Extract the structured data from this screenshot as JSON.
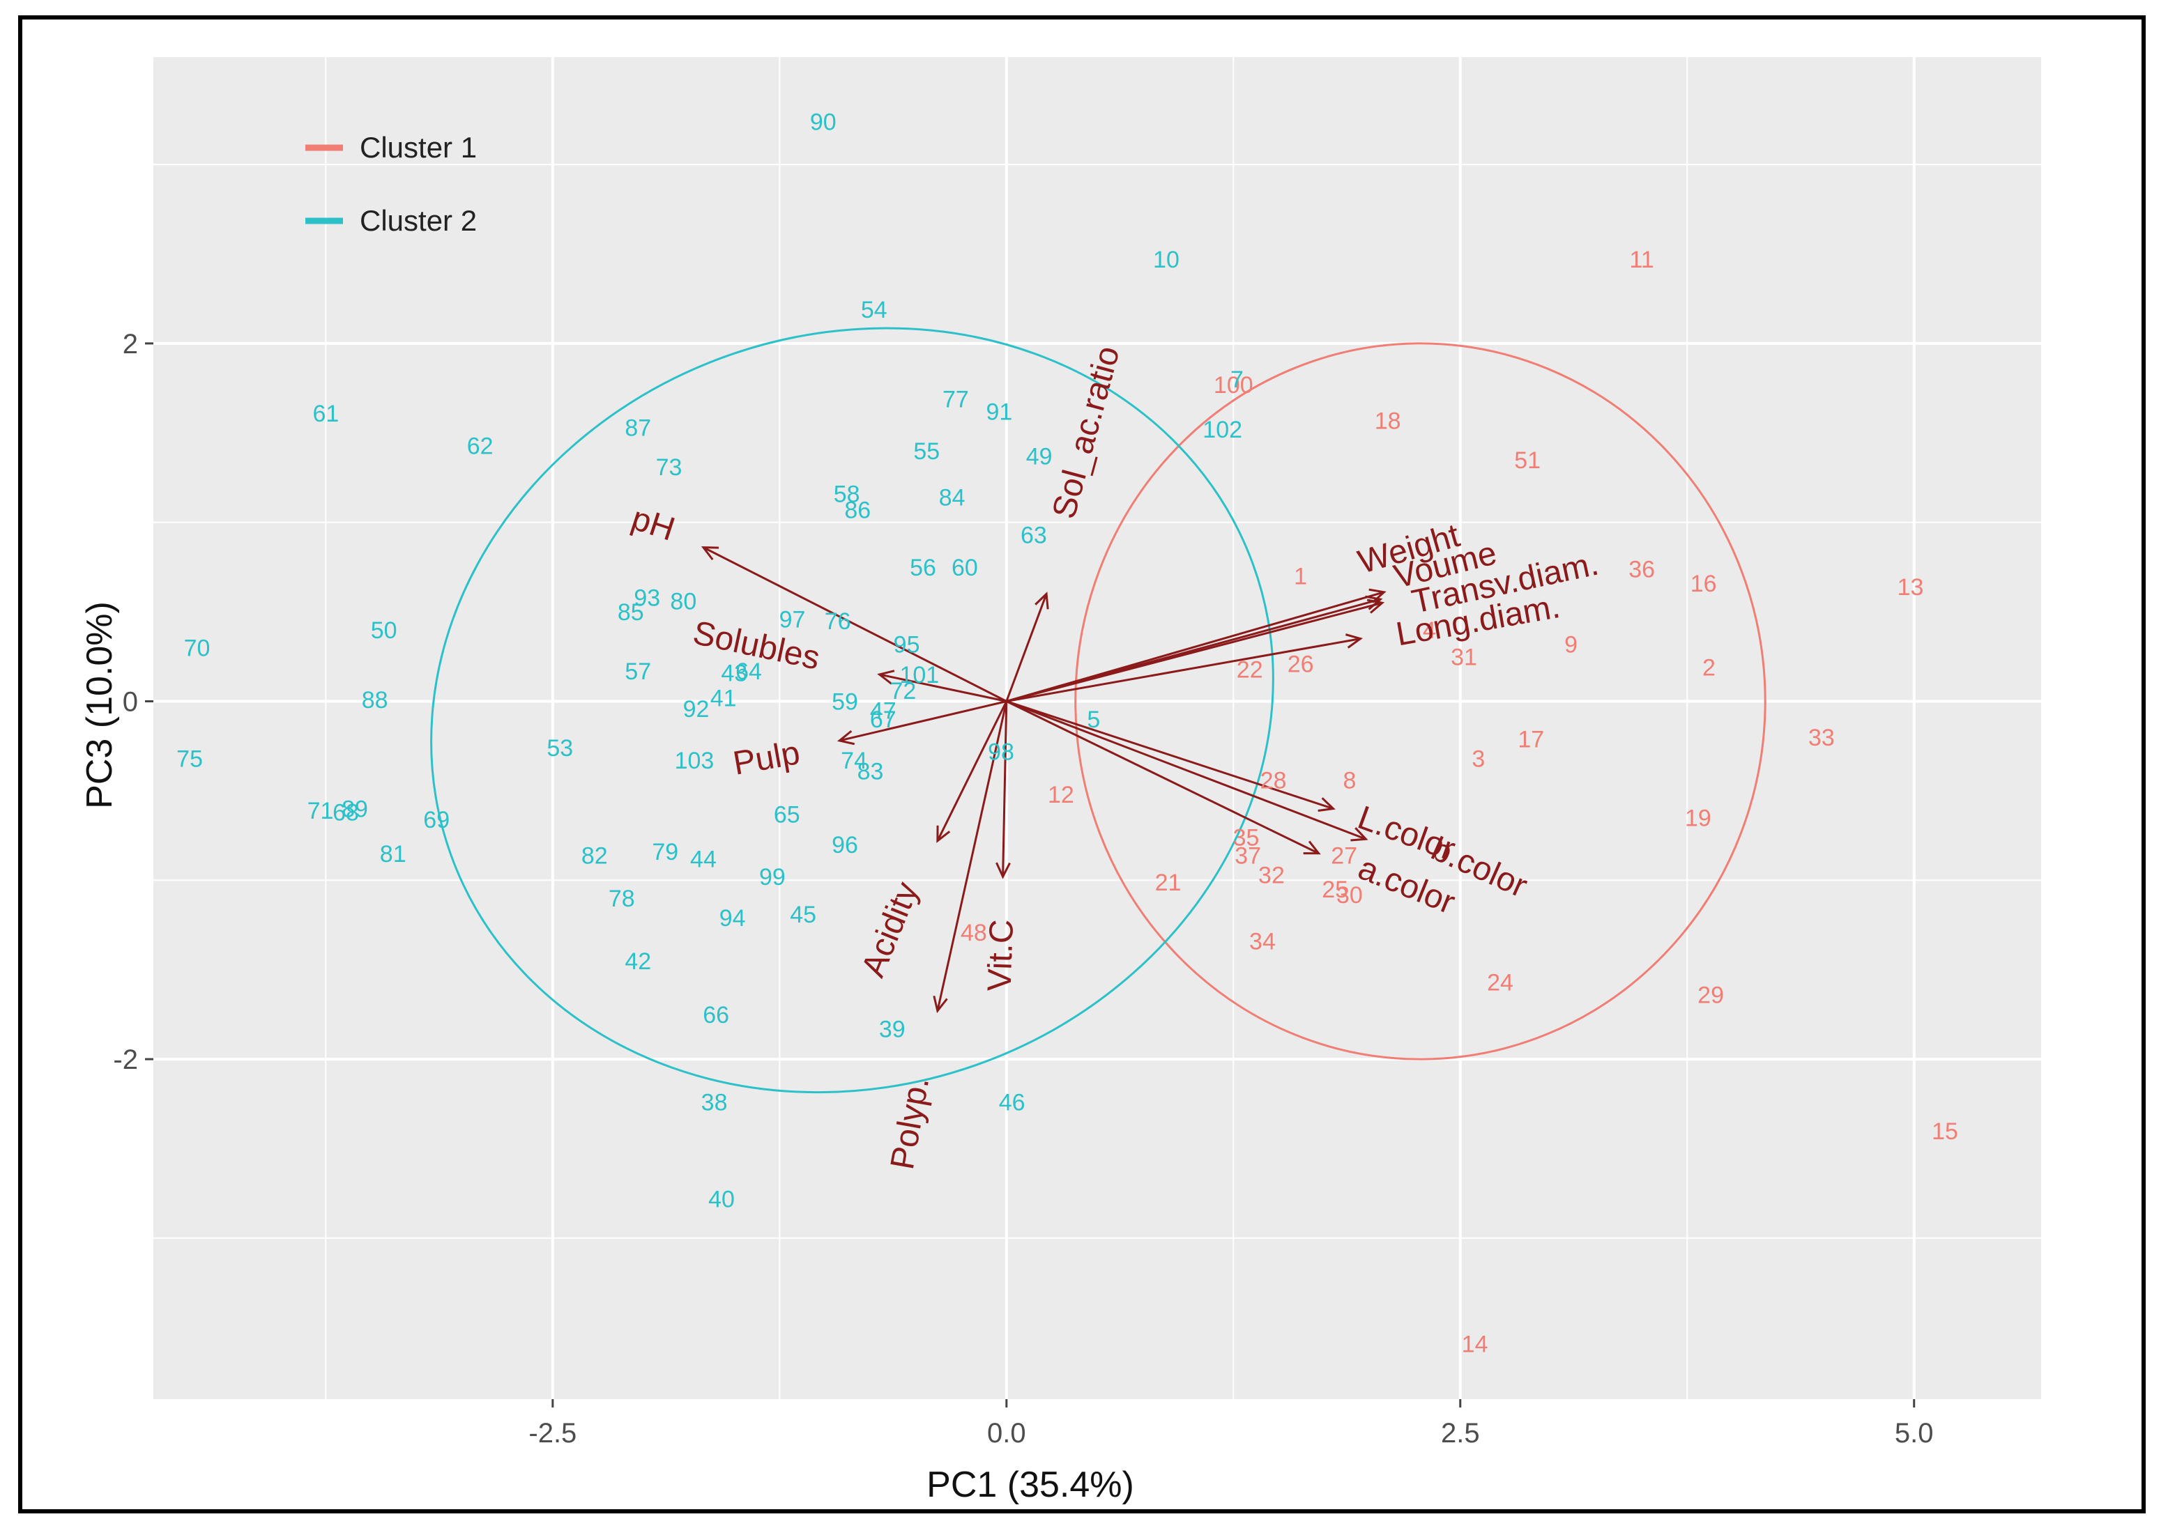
{
  "chart_data": {
    "type": "scatter",
    "title": "",
    "xlabel": "PC1 (35.4%)",
    "ylabel": "PC3 (10.0%)",
    "xlim": [
      -4.7,
      5.7
    ],
    "ylim": [
      -3.9,
      3.6
    ],
    "xticks": [
      -2.5,
      0.0,
      2.5,
      5.0
    ],
    "xtick_labels": [
      "-2.5",
      "0.0",
      "2.5",
      "5.0"
    ],
    "yticks": [
      -2,
      0,
      2
    ],
    "ytick_labels": [
      "-2",
      "0",
      "2"
    ],
    "grid": true,
    "legend_position": "top-left",
    "colors": {
      "cluster1": "#f07e74",
      "cluster2": "#2cc1c9",
      "arrow": "#8b1a1a",
      "panel": "#ebebeb",
      "grid": "#ffffff"
    },
    "series": [
      {
        "name": "Cluster 1",
        "color": "#f07e74",
        "ellipse": {
          "cx": 2.28,
          "cy": 0.0,
          "rx": 1.9,
          "ry": 2.0
        },
        "points": [
          {
            "label": "11",
            "x": 3.5,
            "y": 2.47
          },
          {
            "label": "100",
            "x": 1.25,
            "y": 1.77
          },
          {
            "label": "18",
            "x": 2.1,
            "y": 1.57
          },
          {
            "label": "51",
            "x": 2.87,
            "y": 1.35
          },
          {
            "label": "1",
            "x": 1.62,
            "y": 0.7
          },
          {
            "label": "36",
            "x": 3.5,
            "y": 0.74
          },
          {
            "label": "16",
            "x": 3.84,
            "y": 0.66
          },
          {
            "label": "13",
            "x": 4.98,
            "y": 0.64
          },
          {
            "label": "4",
            "x": 2.33,
            "y": 0.4
          },
          {
            "label": "31",
            "x": 2.52,
            "y": 0.25
          },
          {
            "label": "9",
            "x": 3.11,
            "y": 0.32
          },
          {
            "label": "2",
            "x": 3.87,
            "y": 0.19
          },
          {
            "label": "22",
            "x": 1.34,
            "y": 0.18
          },
          {
            "label": "26",
            "x": 1.62,
            "y": 0.21
          },
          {
            "label": "33",
            "x": 4.49,
            "y": -0.2
          },
          {
            "label": "17",
            "x": 2.89,
            "y": -0.21
          },
          {
            "label": "3",
            "x": 2.6,
            "y": -0.32
          },
          {
            "label": "28",
            "x": 1.47,
            "y": -0.44
          },
          {
            "label": "8",
            "x": 1.89,
            "y": -0.44
          },
          {
            "label": "12",
            "x": 0.3,
            "y": -0.52
          },
          {
            "label": "19",
            "x": 3.81,
            "y": -0.65
          },
          {
            "label": "35",
            "x": 1.32,
            "y": -0.76
          },
          {
            "label": "37",
            "x": 1.33,
            "y": -0.86
          },
          {
            "label": "27",
            "x": 1.86,
            "y": -0.86
          },
          {
            "label": "32",
            "x": 1.46,
            "y": -0.97
          },
          {
            "label": "21",
            "x": 0.89,
            "y": -1.01
          },
          {
            "label": "25",
            "x": 1.81,
            "y": -1.05
          },
          {
            "label": "30",
            "x": 1.89,
            "y": -1.08
          },
          {
            "label": "34",
            "x": 1.41,
            "y": -1.34
          },
          {
            "label": "48",
            "x": -0.18,
            "y": -1.29
          },
          {
            "label": "24",
            "x": 2.72,
            "y": -1.57
          },
          {
            "label": "29",
            "x": 3.88,
            "y": -1.64
          },
          {
            "label": "15",
            "x": 5.17,
            "y": -2.4
          },
          {
            "label": "14",
            "x": 2.58,
            "y": -3.59
          }
        ]
      },
      {
        "name": "Cluster 2",
        "color": "#2cc1c9",
        "ellipse": {
          "cx": -0.85,
          "cy": -0.05,
          "rx": 2.35,
          "ry": 2.1,
          "angle": 20
        },
        "points": [
          {
            "label": "90",
            "x": -1.01,
            "y": 3.24
          },
          {
            "label": "10",
            "x": 0.88,
            "y": 2.47
          },
          {
            "label": "54",
            "x": -0.73,
            "y": 2.19
          },
          {
            "label": "7",
            "x": 1.27,
            "y": 1.8
          },
          {
            "label": "61",
            "x": -3.75,
            "y": 1.61
          },
          {
            "label": "77",
            "x": -0.28,
            "y": 1.69
          },
          {
            "label": "91",
            "x": -0.04,
            "y": 1.62
          },
          {
            "label": "87",
            "x": -2.03,
            "y": 1.53
          },
          {
            "label": "102",
            "x": 1.19,
            "y": 1.52
          },
          {
            "label": "62",
            "x": -2.9,
            "y": 1.43
          },
          {
            "label": "55",
            "x": -0.44,
            "y": 1.4
          },
          {
            "label": "49",
            "x": 0.18,
            "y": 1.37
          },
          {
            "label": "73",
            "x": -1.86,
            "y": 1.31
          },
          {
            "label": "58",
            "x": -0.88,
            "y": 1.16
          },
          {
            "label": "84",
            "x": -0.3,
            "y": 1.14
          },
          {
            "label": "86",
            "x": -0.82,
            "y": 1.07
          },
          {
            "label": "63",
            "x": 0.15,
            "y": 0.93
          },
          {
            "label": "56",
            "x": -0.46,
            "y": 0.75
          },
          {
            "label": "60",
            "x": -0.23,
            "y": 0.75
          },
          {
            "label": "93",
            "x": -1.98,
            "y": 0.58
          },
          {
            "label": "80",
            "x": -1.78,
            "y": 0.56
          },
          {
            "label": "85",
            "x": -2.07,
            "y": 0.5
          },
          {
            "label": "97",
            "x": -1.18,
            "y": 0.46
          },
          {
            "label": "76",
            "x": -0.93,
            "y": 0.45
          },
          {
            "label": "50",
            "x": -3.43,
            "y": 0.4
          },
          {
            "label": "70",
            "x": -4.46,
            "y": 0.3
          },
          {
            "label": "95",
            "x": -0.55,
            "y": 0.32
          },
          {
            "label": "57",
            "x": -2.03,
            "y": 0.17
          },
          {
            "label": "43",
            "x": -1.5,
            "y": 0.16
          },
          {
            "label": "64",
            "x": -1.42,
            "y": 0.17
          },
          {
            "label": "101",
            "x": -0.48,
            "y": 0.15
          },
          {
            "label": "72",
            "x": -0.57,
            "y": 0.06
          },
          {
            "label": "88",
            "x": -3.48,
            "y": 0.01
          },
          {
            "label": "41",
            "x": -1.56,
            "y": 0.02
          },
          {
            "label": "59",
            "x": -0.89,
            "y": 0.0
          },
          {
            "label": "92",
            "x": -1.71,
            "y": -0.04
          },
          {
            "label": "47",
            "x": -0.68,
            "y": -0.05
          },
          {
            "label": "67",
            "x": -0.68,
            "y": -0.1
          },
          {
            "label": "5",
            "x": 0.48,
            "y": -0.1
          },
          {
            "label": "75",
            "x": -4.5,
            "y": -0.32
          },
          {
            "label": "53",
            "x": -2.46,
            "y": -0.26
          },
          {
            "label": "103",
            "x": -1.72,
            "y": -0.33
          },
          {
            "label": "98",
            "x": -0.03,
            "y": -0.28
          },
          {
            "label": "74",
            "x": -0.84,
            "y": -0.33
          },
          {
            "label": "83",
            "x": -0.75,
            "y": -0.39
          },
          {
            "label": "71",
            "x": -3.78,
            "y": -0.61
          },
          {
            "label": "68",
            "x": -3.64,
            "y": -0.62
          },
          {
            "label": "89",
            "x": -3.59,
            "y": -0.6
          },
          {
            "label": "69",
            "x": -3.14,
            "y": -0.66
          },
          {
            "label": "65",
            "x": -1.21,
            "y": -0.63
          },
          {
            "label": "96",
            "x": -0.89,
            "y": -0.8
          },
          {
            "label": "81",
            "x": -3.38,
            "y": -0.85
          },
          {
            "label": "82",
            "x": -2.27,
            "y": -0.86
          },
          {
            "label": "79",
            "x": -1.88,
            "y": -0.84
          },
          {
            "label": "44",
            "x": -1.67,
            "y": -0.88
          },
          {
            "label": "99",
            "x": -1.29,
            "y": -0.98
          },
          {
            "label": "78",
            "x": -2.12,
            "y": -1.1
          },
          {
            "label": "94",
            "x": -1.51,
            "y": -1.21
          },
          {
            "label": "45",
            "x": -1.12,
            "y": -1.19
          },
          {
            "label": "42",
            "x": -2.03,
            "y": -1.45
          },
          {
            "label": "66",
            "x": -1.6,
            "y": -1.75
          },
          {
            "label": "39",
            "x": -0.63,
            "y": -1.83
          },
          {
            "label": "38",
            "x": -1.61,
            "y": -2.24
          },
          {
            "label": "46",
            "x": 0.03,
            "y": -2.24
          },
          {
            "label": "40",
            "x": -1.57,
            "y": -2.78
          }
        ]
      }
    ],
    "loadings": [
      {
        "label": "pH",
        "x": -1.67,
        "y": 0.86,
        "lx": -1.95,
        "ly": 0.98,
        "rot": 18
      },
      {
        "label": "Sol_ac.ratio",
        "x": 0.22,
        "y": 0.6,
        "lx": 0.45,
        "ly": 1.5,
        "rot": -75
      },
      {
        "label": "Solubles",
        "x": -0.7,
        "y": 0.15,
        "lx": -1.38,
        "ly": 0.3,
        "rot": 12
      },
      {
        "label": "Pulp",
        "x": -0.92,
        "y": -0.22,
        "lx": -1.32,
        "ly": -0.33,
        "rot": -10
      },
      {
        "label": "Acidity",
        "x": -0.38,
        "y": -0.78,
        "lx": -0.63,
        "ly": -1.28,
        "rot": -68
      },
      {
        "label": "Polyp.",
        "x": -0.38,
        "y": -1.73,
        "lx": -0.52,
        "ly": -2.36,
        "rot": -80
      },
      {
        "label": "Vit.C",
        "x": -0.02,
        "y": -0.98,
        "lx": -0.02,
        "ly": -1.42,
        "rot": -88
      },
      {
        "label": "Weight",
        "x": 2.08,
        "y": 0.61,
        "lx": 2.22,
        "ly": 0.84,
        "rot": -16
      },
      {
        "label": "Voume",
        "x": 2.06,
        "y": 0.57,
        "lx": 2.42,
        "ly": 0.75,
        "rot": -14
      },
      {
        "label": "Transv.diam.",
        "x": 2.07,
        "y": 0.55,
        "lx": 2.75,
        "ly": 0.65,
        "rot": -12
      },
      {
        "label": "Long.diam.",
        "x": 1.95,
        "y": 0.35,
        "lx": 2.6,
        "ly": 0.44,
        "rot": -10
      },
      {
        "label": "L.color",
        "x": 1.8,
        "y": -0.6,
        "lx": 2.2,
        "ly": -0.75,
        "rot": 20
      },
      {
        "label": "b.color",
        "x": 1.98,
        "y": -0.77,
        "lx": 2.6,
        "ly": -0.94,
        "rot": 24
      },
      {
        "label": "a.color",
        "x": 1.72,
        "y": -0.85,
        "lx": 2.2,
        "ly": -1.04,
        "rot": 22
      }
    ]
  }
}
